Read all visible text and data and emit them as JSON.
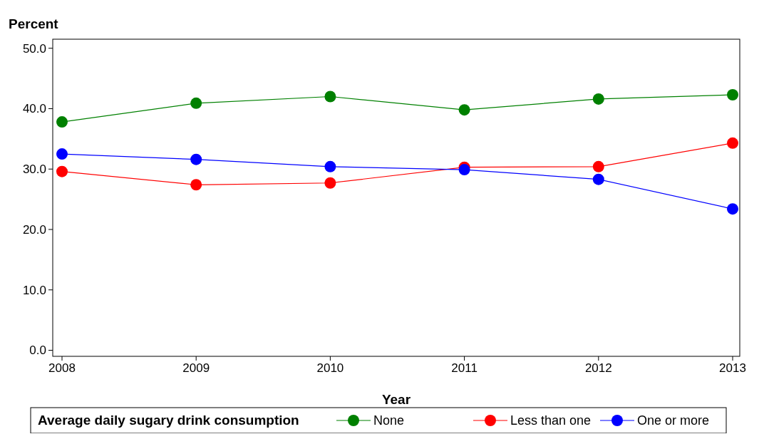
{
  "chart_data": {
    "type": "line",
    "ylabel": "Percent",
    "xlabel": "Year",
    "legend_title": "Average daily sugary drink consumption",
    "legend": "bottom",
    "marker": "circle",
    "line_style": "solid",
    "grid": false,
    "categories": [
      "2008",
      "2009",
      "2010",
      "2011",
      "2012",
      "2013"
    ],
    "ylim": [
      -1,
      51.5
    ],
    "yticks": [
      {
        "value": 0,
        "label": "0.0"
      },
      {
        "value": 10,
        "label": "10.0"
      },
      {
        "value": 20,
        "label": "20.0"
      },
      {
        "value": 30,
        "label": "30.0"
      },
      {
        "value": 40,
        "label": "40.0"
      },
      {
        "value": 50,
        "label": "50.0"
      }
    ],
    "series": [
      {
        "name": "None",
        "color": "#008000",
        "values": [
          37.8,
          40.9,
          42.0,
          39.8,
          41.6,
          42.3
        ]
      },
      {
        "name": "Less than one",
        "color": "#ff0000",
        "values": [
          29.6,
          27.4,
          27.7,
          30.3,
          30.4,
          34.3
        ]
      },
      {
        "name": "One or more",
        "color": "#0000ff",
        "values": [
          32.5,
          31.6,
          30.4,
          29.9,
          28.3,
          23.4
        ]
      }
    ]
  }
}
